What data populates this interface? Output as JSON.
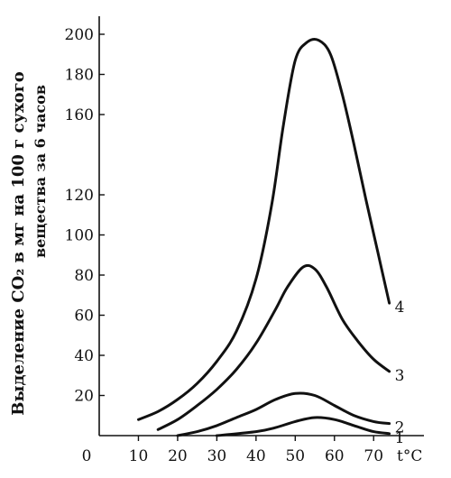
{
  "chart_data": {
    "type": "line",
    "xlabel": "t°C",
    "ylabel": "Выделение CO₂ в мг на 100 г сухого",
    "ylabel_line2": "вещества за 6 часов",
    "xlim": [
      0,
      78
    ],
    "ylim": [
      0,
      200
    ],
    "x_ticks": [
      {
        "value": 0,
        "label": "0"
      },
      {
        "value": 10,
        "label": "10"
      },
      {
        "value": 20,
        "label": "20"
      },
      {
        "value": 30,
        "label": "30"
      },
      {
        "value": 40,
        "label": "40"
      },
      {
        "value": 50,
        "label": "50"
      },
      {
        "value": 60,
        "label": "60"
      },
      {
        "value": 70,
        "label": "70"
      }
    ],
    "y_ticks": [
      {
        "value": 20,
        "label": "20"
      },
      {
        "value": 40,
        "label": "40"
      },
      {
        "value": 60,
        "label": "60"
      },
      {
        "value": 80,
        "label": "80"
      },
      {
        "value": 100,
        "label": "100"
      },
      {
        "value": 120,
        "label": "120"
      },
      {
        "value": 160,
        "label": "160"
      },
      {
        "value": 180,
        "label": "180"
      },
      {
        "value": 200,
        "label": "200"
      }
    ],
    "series": [
      {
        "name": "1",
        "x": [
          30,
          40,
          45,
          50,
          55,
          60,
          65,
          70,
          74
        ],
        "y": [
          0,
          2,
          4,
          7,
          9,
          8,
          5,
          2,
          1
        ]
      },
      {
        "name": "2",
        "x": [
          20,
          25,
          30,
          35,
          40,
          45,
          50,
          55,
          60,
          65,
          70,
          74
        ],
        "y": [
          0,
          2,
          5,
          9,
          13,
          18,
          21,
          20,
          15,
          10,
          7,
          6
        ]
      },
      {
        "name": "3",
        "x": [
          15,
          20,
          25,
          30,
          35,
          40,
          45,
          48,
          52,
          55,
          58,
          62,
          66,
          70,
          74
        ],
        "y": [
          3,
          8,
          15,
          23,
          33,
          46,
          63,
          74,
          84,
          83,
          74,
          58,
          47,
          38,
          32
        ]
      },
      {
        "name": "4",
        "x": [
          10,
          15,
          20,
          25,
          30,
          35,
          40,
          44,
          47,
          50,
          53,
          56,
          59,
          62,
          65,
          68,
          71,
          74
        ],
        "y": [
          8,
          12,
          18,
          26,
          37,
          52,
          78,
          115,
          155,
          187,
          196,
          197,
          190,
          170,
          145,
          118,
          92,
          66
        ]
      }
    ]
  }
}
